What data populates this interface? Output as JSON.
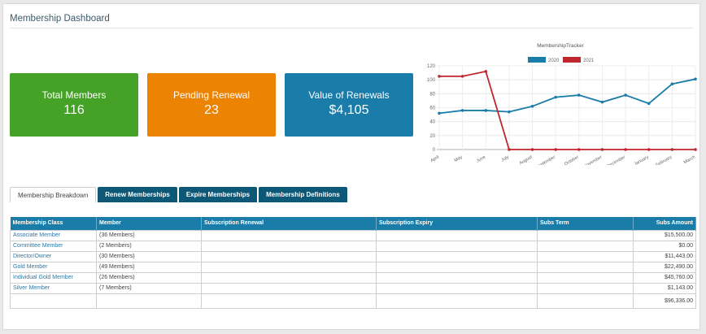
{
  "page": {
    "title": "Membership Dashboard"
  },
  "cards": [
    {
      "label": "Total Members",
      "value": "116",
      "color": "#46a227"
    },
    {
      "label": "Pending Renewal",
      "value": "23",
      "color": "#ec8303"
    },
    {
      "label": "Value of Renewals",
      "value": "$4,105",
      "color": "#1a7ca9"
    }
  ],
  "chart_data": {
    "type": "line",
    "title": "MembershipTracker",
    "categories": [
      "April",
      "May",
      "June",
      "July",
      "August",
      "September",
      "October",
      "November",
      "December",
      "January",
      "February",
      "March"
    ],
    "series": [
      {
        "name": "2020",
        "color": "#1a7ca9",
        "values": [
          52,
          56,
          56,
          54,
          62,
          75,
          78,
          68,
          78,
          66,
          94,
          101
        ]
      },
      {
        "name": "2021",
        "color": "#c0262d",
        "values": [
          105,
          105,
          112,
          0,
          0,
          0,
          0,
          0,
          0,
          0,
          0,
          0
        ]
      }
    ],
    "yticks": [
      0,
      20,
      40,
      60,
      80,
      100,
      120
    ],
    "ylim": [
      0,
      120
    ],
    "legend_position": "top",
    "grid": true
  },
  "tabs": [
    {
      "label": "Membership Breakdown",
      "active": true
    },
    {
      "label": "Renew Memberships"
    },
    {
      "label": "Expire Memberships"
    },
    {
      "label": "Membership Definitions"
    }
  ],
  "table": {
    "headers": [
      "Membership Class",
      "Member",
      "Subscription Renewal",
      "Subscription Expiry",
      "Subs Term",
      "Subs Amount"
    ],
    "rows": [
      [
        "Associate Member",
        "(36 Members)",
        "",
        "",
        "",
        "$15,500.00"
      ],
      [
        "Committee Member",
        "(2 Members)",
        "",
        "",
        "",
        "$0.00"
      ],
      [
        "Director/Owner",
        "(30 Members)",
        "",
        "",
        "",
        "$11,443.00"
      ],
      [
        "Gold Member",
        "(49 Members)",
        "",
        "",
        "",
        "$22,490.00"
      ],
      [
        "Individual Gold Member",
        "(26 Members)",
        "",
        "",
        "",
        "$45,760.00"
      ],
      [
        "Silver Member",
        "(7 Members)",
        "",
        "",
        "",
        "$1,143.00"
      ]
    ],
    "total": "$96,336.00"
  }
}
